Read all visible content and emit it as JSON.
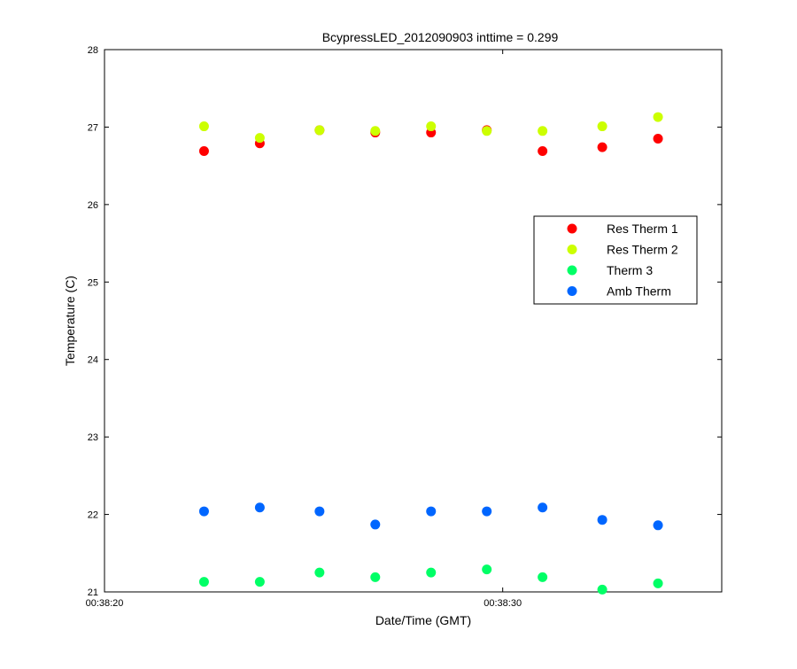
{
  "chart_data": {
    "type": "scatter",
    "title": "BcypressLED_2012090903 inttime = 0.299",
    "xlabel": "Date/Time (GMT)",
    "ylabel": "Temperature (C)",
    "xlim": [
      "00:38:20",
      "00:38:35.5"
    ],
    "ylim": [
      21,
      28
    ],
    "xticks": [
      "00:38:20",
      "00:38:30"
    ],
    "yticks": [
      21,
      22,
      23,
      24,
      25,
      26,
      27,
      28
    ],
    "grid": false,
    "legend_position": "right",
    "x": [
      "00:38:22.5",
      "00:38:23.9",
      "00:38:25.4",
      "00:38:26.8",
      "00:38:28.2",
      "00:38:29.6",
      "00:38:31.0",
      "00:38:32.5",
      "00:38:33.9"
    ],
    "series": [
      {
        "name": "Res Therm 1",
        "color": "#ff0000",
        "values": [
          26.69,
          26.79,
          26.96,
          26.93,
          26.93,
          26.96,
          26.69,
          26.74,
          26.85
        ]
      },
      {
        "name": "Res Therm 2",
        "color": "#ccff00",
        "values": [
          27.01,
          26.86,
          26.96,
          26.95,
          27.01,
          26.95,
          26.95,
          27.01,
          27.13
        ]
      },
      {
        "name": "Therm 3",
        "color": "#00ff66",
        "values": [
          21.13,
          21.13,
          21.25,
          21.19,
          21.25,
          21.29,
          21.19,
          21.03,
          21.11
        ]
      },
      {
        "name": "Amb Therm",
        "color": "#0066ff",
        "values": [
          22.04,
          22.09,
          22.04,
          21.87,
          22.04,
          22.04,
          22.09,
          21.93,
          21.86
        ]
      }
    ]
  }
}
